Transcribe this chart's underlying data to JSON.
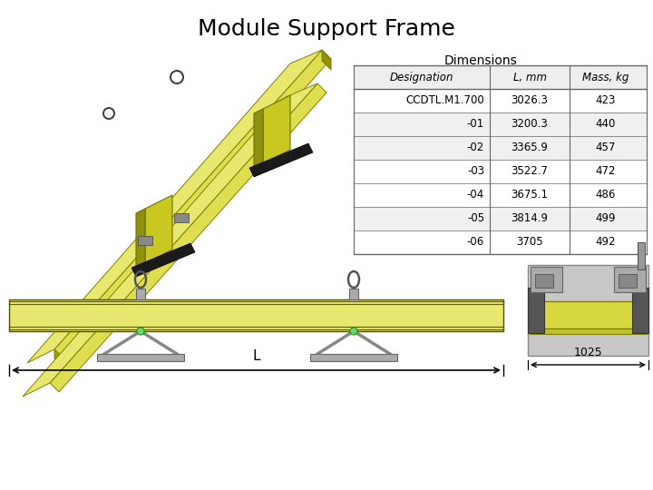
{
  "title": "Module Support Frame",
  "bg_color": "#ffffff",
  "title_fontsize": 18,
  "dimensions_label": "Dimensions",
  "table_header": [
    "Designation",
    "L, mm",
    "Mass, kg"
  ],
  "table_rows": [
    [
      "CCDTL.M1.700",
      "3026.3",
      "423"
    ],
    [
      "-01",
      "3200.3",
      "440"
    ],
    [
      "-02",
      "3365.9",
      "457"
    ],
    [
      "-03",
      "3522.7",
      "472"
    ],
    [
      "-04",
      "3675.1",
      "486"
    ],
    [
      "-05",
      "3814.9",
      "499"
    ],
    [
      "-06",
      "3705",
      "492"
    ]
  ],
  "dim_L_label": "L",
  "dim_1025_label": "1025",
  "beam_yellow": "#e8e870",
  "beam_yellow_dark": "#c8c820",
  "beam_outline": "#888800",
  "grey_support": "#aaaaaa",
  "grey_dark": "#777777",
  "black_detail": "#222222"
}
